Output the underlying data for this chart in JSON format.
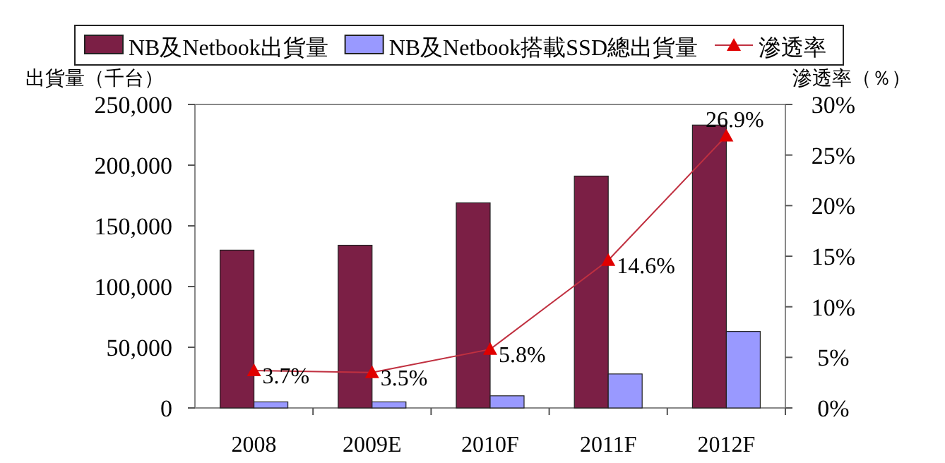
{
  "chart_data": {
    "type": "bar",
    "ylabel": "出貨量（千台）",
    "y2label": "滲透率（％）",
    "categories": [
      "2008",
      "2009E",
      "2010F",
      "2011F",
      "2012F"
    ],
    "series": [
      {
        "name": "NB及Netbook出貨量",
        "color": "#7b1f45",
        "values": [
          130000,
          134000,
          169000,
          191000,
          233000
        ]
      },
      {
        "name": "NB及Netbook搭載SSD總出貨量",
        "color": "#9999ff",
        "values": [
          5000,
          5000,
          10000,
          28000,
          63000
        ]
      },
      {
        "name": "滲透率",
        "type": "line",
        "axis": "y2",
        "color": "#c03040",
        "marker": "triangle",
        "values": [
          3.7,
          3.5,
          5.8,
          14.6,
          26.9
        ],
        "value_labels": [
          "3.7%",
          "3.5%",
          "5.8%",
          "14.6%",
          "26.9%"
        ]
      }
    ],
    "ylim": [
      0,
      250000
    ],
    "yticks": [
      0,
      {
        "value": 50000,
        "label": "50,000"
      },
      {
        "value": 100000,
        "label": "100,000"
      },
      {
        "value": 150000,
        "label": "150,000"
      },
      {
        "value": 200000,
        "label": "200,000"
      },
      {
        "value": 250000,
        "label": "250,000"
      }
    ],
    "y2lim": [
      0,
      30
    ],
    "y2ticks": [
      {
        "value": 0,
        "label": "0%"
      },
      {
        "value": 5,
        "label": "5%"
      },
      {
        "value": 10,
        "label": "10%"
      },
      {
        "value": 15,
        "label": "15%"
      },
      {
        "value": 20,
        "label": "20%"
      },
      {
        "value": 25,
        "label": "25%"
      },
      {
        "value": 30,
        "label": "30%"
      }
    ],
    "legend": "top",
    "grid": false
  }
}
